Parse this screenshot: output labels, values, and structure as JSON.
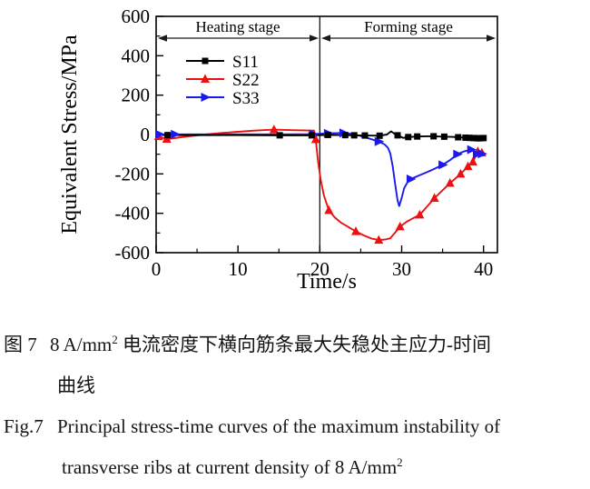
{
  "chart_data": {
    "type": "line",
    "title": "",
    "xlabel": "Time/s",
    "ylabel": "Equivalent Stress/MPa",
    "xlim": [
      0,
      41.7
    ],
    "ylim": [
      -600,
      600
    ],
    "grid": false,
    "legend_position": "upper-left-inside",
    "x_major_ticks": [
      0,
      10,
      20,
      30,
      40
    ],
    "x_tick_labels": [
      "0",
      "10",
      "20",
      "30",
      "40"
    ],
    "x_minor_ticks": [
      5,
      15,
      25,
      35
    ],
    "y_major_ticks": [
      600,
      400,
      200,
      0,
      -200,
      -400,
      -600
    ],
    "y_tick_labels": [
      "600",
      "400",
      "200",
      "0",
      "-200",
      "-400",
      "-600"
    ],
    "y_minor_ticks": [
      500,
      300,
      100,
      -100,
      -300,
      -500
    ],
    "stage_divider_x": 20,
    "annotations": [
      {
        "label": "Heating stage",
        "arrow_span": [
          0,
          20
        ]
      },
      {
        "label": "Forming stage",
        "arrow_span": [
          20,
          41.7
        ]
      }
    ],
    "series": [
      {
        "name": "S11",
        "color": "#000000",
        "marker": "square",
        "points": [
          [
            0,
            -2
          ],
          [
            1.4,
            -3
          ],
          [
            5,
            -3
          ],
          [
            10,
            -3
          ],
          [
            15.1,
            -4
          ],
          [
            19,
            -4
          ],
          [
            20,
            -3
          ],
          [
            21,
            -2
          ],
          [
            23.1,
            -3
          ],
          [
            24.2,
            -4
          ],
          [
            25.5,
            -5
          ],
          [
            27.3,
            -6
          ],
          [
            28.2,
            0
          ],
          [
            28.7,
            16
          ],
          [
            29.2,
            2
          ],
          [
            29.5,
            -4
          ],
          [
            30.2,
            -17
          ],
          [
            30.8,
            -13
          ],
          [
            31.9,
            -10
          ],
          [
            33,
            -9
          ],
          [
            33.9,
            -9
          ],
          [
            35.2,
            -11
          ],
          [
            36.2,
            -12
          ],
          [
            36.9,
            -14
          ],
          [
            37.8,
            -16
          ],
          [
            38.3,
            -17
          ],
          [
            38.8,
            -18
          ],
          [
            39.2,
            -19
          ],
          [
            39.6,
            -19
          ],
          [
            40,
            -18
          ]
        ],
        "marker_points": [
          [
            1.4,
            -3
          ],
          [
            15.1,
            -4
          ],
          [
            19,
            -4
          ],
          [
            21,
            -2
          ],
          [
            23.1,
            -3
          ],
          [
            24.2,
            -4
          ],
          [
            25.5,
            -5
          ],
          [
            27.3,
            -6
          ],
          [
            29.5,
            -4
          ],
          [
            30.8,
            -13
          ],
          [
            31.9,
            -10
          ],
          [
            33.9,
            -9
          ],
          [
            35.2,
            -11
          ],
          [
            36.9,
            -14
          ],
          [
            37.8,
            -16
          ],
          [
            38.3,
            -17
          ],
          [
            38.8,
            -18
          ],
          [
            39.2,
            -19
          ],
          [
            39.6,
            -19
          ],
          [
            40,
            -18
          ]
        ]
      },
      {
        "name": "S22",
        "color": "#ee1010",
        "marker": "triangle-up",
        "points": [
          [
            0,
            -6
          ],
          [
            0.3,
            -10
          ],
          [
            1.3,
            -23
          ],
          [
            2.2,
            -19
          ],
          [
            3,
            -14
          ],
          [
            4,
            -9
          ],
          [
            5,
            -4
          ],
          [
            6,
            0
          ],
          [
            8,
            8
          ],
          [
            10,
            14
          ],
          [
            12,
            20
          ],
          [
            14.4,
            25
          ],
          [
            16.5,
            22
          ],
          [
            18,
            21
          ],
          [
            19.3,
            20
          ],
          [
            19.5,
            -25
          ],
          [
            19.8,
            -140
          ],
          [
            20.1,
            -230
          ],
          [
            20.5,
            -310
          ],
          [
            21.1,
            -385
          ],
          [
            21.8,
            -420
          ],
          [
            22.6,
            -448
          ],
          [
            23.5,
            -470
          ],
          [
            24.4,
            -492
          ],
          [
            25.4,
            -513
          ],
          [
            26.3,
            -528
          ],
          [
            27.2,
            -536
          ],
          [
            28,
            -533
          ],
          [
            28.6,
            -527
          ],
          [
            29.2,
            -498
          ],
          [
            29.8,
            -468
          ],
          [
            30.6,
            -443
          ],
          [
            31.4,
            -425
          ],
          [
            32.2,
            -408
          ],
          [
            33.1,
            -366
          ],
          [
            34,
            -323
          ],
          [
            35,
            -283
          ],
          [
            35.9,
            -247
          ],
          [
            36.6,
            -222
          ],
          [
            37.2,
            -200
          ],
          [
            38.1,
            -162
          ],
          [
            38.7,
            -139
          ],
          [
            39.3,
            -86
          ],
          [
            39.8,
            -93
          ]
        ],
        "marker_points": [
          [
            0.3,
            -10
          ],
          [
            1.3,
            -23
          ],
          [
            14.4,
            25
          ],
          [
            19.5,
            -25
          ],
          [
            21.1,
            -385
          ],
          [
            24.4,
            -492
          ],
          [
            27.2,
            -536
          ],
          [
            29.8,
            -468
          ],
          [
            32.2,
            -408
          ],
          [
            34,
            -323
          ],
          [
            35.9,
            -247
          ],
          [
            37.2,
            -200
          ],
          [
            38.1,
            -162
          ],
          [
            38.7,
            -139
          ],
          [
            39.3,
            -86
          ],
          [
            39.8,
            -93
          ]
        ]
      },
      {
        "name": "S33",
        "color": "#1a1af0",
        "marker": "triangle-right",
        "points": [
          [
            0,
            1
          ],
          [
            0.4,
            1
          ],
          [
            2.3,
            1
          ],
          [
            5,
            1
          ],
          [
            10,
            1
          ],
          [
            15,
            1
          ],
          [
            19.2,
            2
          ],
          [
            20,
            4
          ],
          [
            21,
            6
          ],
          [
            22.9,
            8
          ],
          [
            24,
            3
          ],
          [
            25,
            -8
          ],
          [
            26,
            -20
          ],
          [
            27.2,
            -36
          ],
          [
            27.9,
            -50
          ],
          [
            28.3,
            -66
          ],
          [
            28.6,
            -95
          ],
          [
            28.9,
            -160
          ],
          [
            29.2,
            -250
          ],
          [
            29.5,
            -335
          ],
          [
            29.7,
            -363
          ],
          [
            30,
            -322
          ],
          [
            30.3,
            -273
          ],
          [
            30.7,
            -243
          ],
          [
            31.1,
            -226
          ],
          [
            32,
            -210
          ],
          [
            33,
            -193
          ],
          [
            34,
            -174
          ],
          [
            35,
            -154
          ],
          [
            35.9,
            -130
          ],
          [
            36.8,
            -100
          ],
          [
            37.6,
            -86
          ],
          [
            38.5,
            -77
          ],
          [
            39,
            -89
          ],
          [
            39.2,
            -100
          ],
          [
            39.5,
            -93
          ],
          [
            39.8,
            -98
          ]
        ],
        "marker_points": [
          [
            0.4,
            1
          ],
          [
            2.3,
            1
          ],
          [
            19.2,
            2
          ],
          [
            21,
            6
          ],
          [
            22.9,
            8
          ],
          [
            27.2,
            -36
          ],
          [
            31.1,
            -226
          ],
          [
            35,
            -154
          ],
          [
            36.8,
            -100
          ],
          [
            38.5,
            -77
          ],
          [
            39.2,
            -100
          ],
          [
            39.8,
            -98
          ]
        ]
      }
    ]
  },
  "caption": {
    "zh": {
      "fig_label": "图 7",
      "line1_pre": "8 A/mm",
      "line1_sup": "2",
      "line1_post": " 电流密度下横向筋条最大失稳处主应力-时间",
      "line2": "曲线"
    },
    "en": {
      "fig_label": "Fig.7",
      "line1": "Principal stress-time curves of the maximum instability of",
      "line2_pre": "transverse ribs at current density of 8 A/mm",
      "line2_sup": "2"
    }
  }
}
